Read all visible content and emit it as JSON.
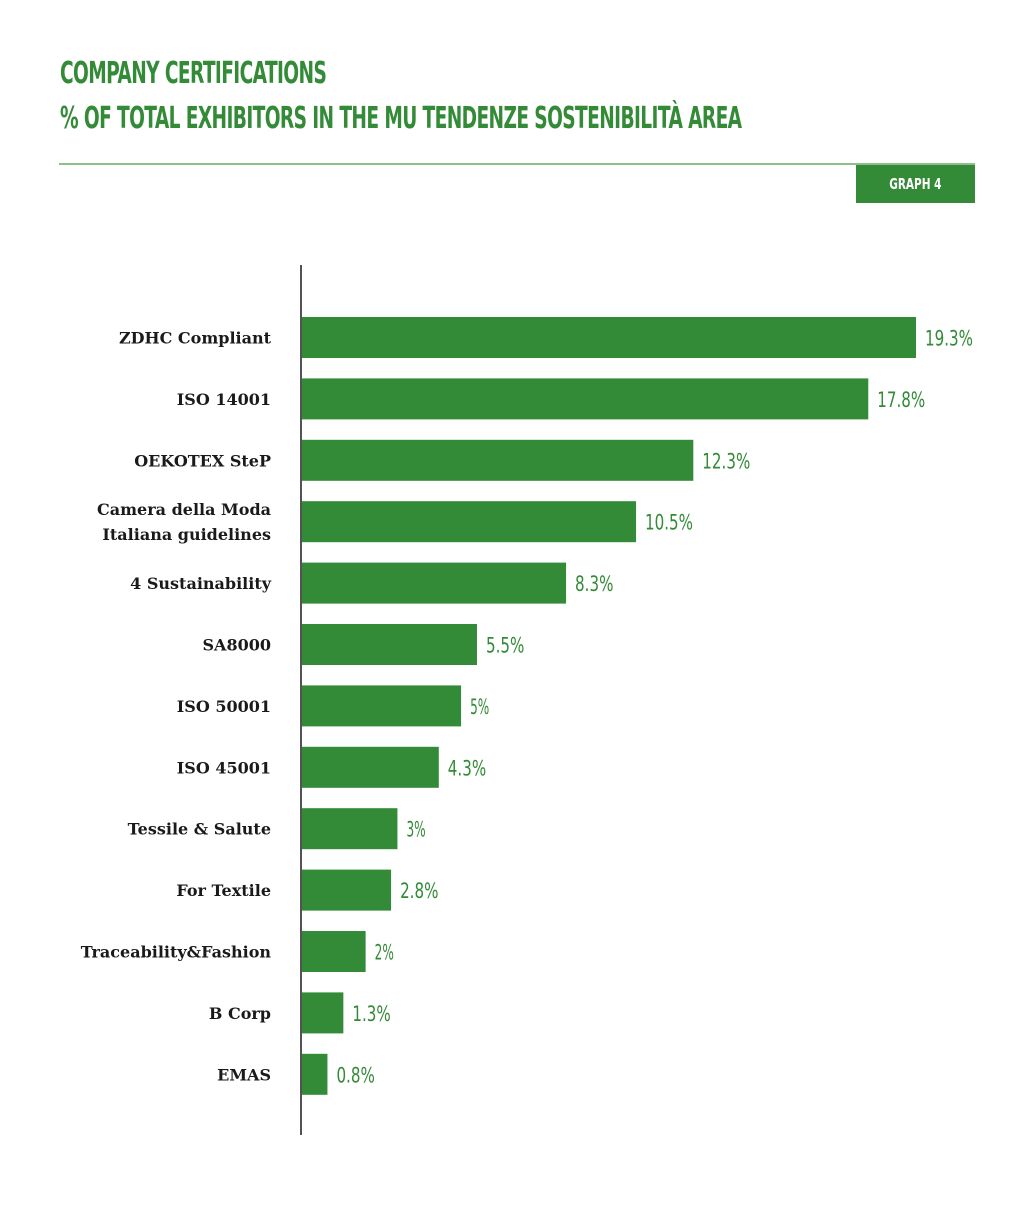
{
  "header": {
    "title_line1": "COMPANY CERTIFICATIONS",
    "title_line2": "% OF TOTAL EXHIBITORS IN THE MU TENDENZE SOSTENIBILITÀ AREA",
    "badge": "GRAPH 4"
  },
  "colors": {
    "accent": "#338a37",
    "rule": "#8cc08a",
    "text": "#1a1a1a"
  },
  "chart_data": {
    "type": "bar",
    "orientation": "horizontal",
    "title": "COMPANY CERTIFICATIONS",
    "subtitle": "% OF TOTAL EXHIBITORS IN THE MU TENDENZE SOSTENIBILITÀ AREA",
    "categories": [
      "ZDHC Compliant",
      "ISO 14001",
      "OEKOTEX SteP",
      [
        "Camera della Moda",
        "Italiana guidelines"
      ],
      "4 Sustainability",
      "SA8000",
      "ISO 50001",
      "ISO 45001",
      "Tessile & Salute",
      "For Textile",
      "Traceability&Fashion",
      "B Corp",
      "EMAS"
    ],
    "values": [
      19.3,
      17.8,
      12.3,
      10.5,
      8.3,
      5.5,
      5,
      4.3,
      3,
      2.8,
      2,
      1.3,
      0.8
    ],
    "value_labels": [
      "19.3%",
      "17.8%",
      "12.3%",
      "10.5%",
      "8.3%",
      "5.5%",
      "5%",
      "4.3%",
      "3%",
      "2.8%",
      "2%",
      "1.3%",
      "0.8%"
    ],
    "unit": "%",
    "grid": false,
    "legend": "none"
  }
}
